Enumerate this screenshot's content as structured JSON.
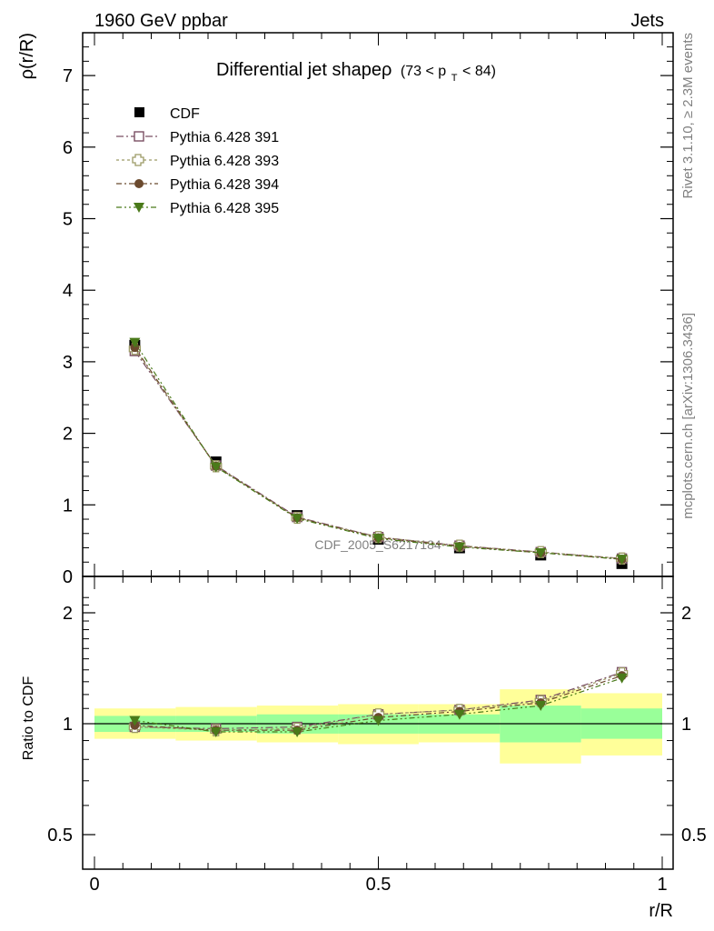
{
  "header": {
    "left": "1960 GeV ppbar",
    "right": "Jets"
  },
  "side_labels": {
    "rivet": "Rivet 3.1.10, ≥ 2.3M events",
    "mcplots": "mcplots.cern.ch [arXiv:1306.3436]"
  },
  "chart_data": [
    {
      "type": "scatter",
      "title": "Differential jet shapeρ",
      "title_cut": "(73 < p",
      "title_cut_sub": "T",
      "title_cut_end": " < 84)",
      "xlabel": "r/R",
      "ylabel": "ρ(r/R)",
      "xlim": [
        0,
        1
      ],
      "ylim": [
        0,
        7.6
      ],
      "y_ticks": [
        "0",
        "1",
        "2",
        "3",
        "4",
        "5",
        "6",
        "7"
      ],
      "watermark": "CDF_2005_S6217184",
      "legend_position": "top-left",
      "x": [
        0.071,
        0.214,
        0.357,
        0.5,
        0.643,
        0.786,
        0.929
      ],
      "series": [
        {
          "name": "CDF",
          "color": "#000000",
          "marker": "square-filled",
          "values": [
            3.23,
            1.6,
            0.85,
            0.52,
            0.4,
            0.3,
            0.18
          ]
        },
        {
          "name": "Pythia 6.428 391",
          "color": "#7a4f63",
          "marker": "square-open",
          "dash": "8,3,2,3",
          "values": [
            3.15,
            1.55,
            0.83,
            0.55,
            0.43,
            0.34,
            0.25
          ]
        },
        {
          "name": "Pythia 6.428 393",
          "color": "#9c9a66",
          "marker": "cross-open",
          "dash": "3,3",
          "values": [
            3.18,
            1.54,
            0.82,
            0.55,
            0.43,
            0.34,
            0.25
          ]
        },
        {
          "name": "Pythia 6.428 394",
          "color": "#6b4a2e",
          "marker": "circle-filled",
          "dash": "6,3,2,3",
          "values": [
            3.2,
            1.54,
            0.82,
            0.54,
            0.42,
            0.33,
            0.24
          ]
        },
        {
          "name": "Pythia 6.428 395",
          "color": "#4a7a1a",
          "marker": "triangle-down-filled",
          "dash": "6,3,2,3,2,3",
          "values": [
            3.27,
            1.53,
            0.81,
            0.53,
            0.41,
            0.33,
            0.24
          ]
        }
      ]
    },
    {
      "type": "scatter",
      "title": "",
      "xlabel": "r/R",
      "ylabel": "Ratio to CDF",
      "xlim": [
        0,
        1
      ],
      "ylim": [
        0.35,
        2.3
      ],
      "x_ticks": [
        "0",
        "0.5",
        "1"
      ],
      "y_ticks": [
        "0.5",
        "1",
        "2"
      ],
      "reference_line": 1,
      "bands": {
        "edges": [
          0,
          0.143,
          0.286,
          0.429,
          0.571,
          0.714,
          0.857,
          1.0
        ],
        "inner_lo": [
          0.95,
          0.95,
          0.94,
          0.94,
          0.94,
          0.89,
          0.91
        ],
        "inner_hi": [
          1.05,
          1.05,
          1.06,
          1.06,
          1.06,
          1.12,
          1.1
        ],
        "outer_lo": [
          0.91,
          0.9,
          0.89,
          0.88,
          0.89,
          0.78,
          0.82
        ],
        "outer_hi": [
          1.1,
          1.11,
          1.12,
          1.13,
          1.13,
          1.24,
          1.21
        ],
        "inner_color": "#99ff99",
        "outer_color": "#ffff99"
      },
      "x": [
        0.071,
        0.214,
        0.357,
        0.5,
        0.643,
        0.786,
        0.929
      ],
      "series": [
        {
          "name": "Pythia 6.428 391",
          "color": "#7a4f63",
          "marker": "square-open",
          "dash": "8,3,2,3",
          "values": [
            0.98,
            0.97,
            0.98,
            1.06,
            1.09,
            1.16,
            1.38
          ]
        },
        {
          "name": "Pythia 6.428 393",
          "color": "#9c9a66",
          "marker": "cross-open",
          "dash": "3,3",
          "values": [
            0.98,
            0.96,
            0.97,
            1.06,
            1.09,
            1.15,
            1.37
          ]
        },
        {
          "name": "Pythia 6.428 394",
          "color": "#6b4a2e",
          "marker": "circle-filled",
          "dash": "6,3,2,3",
          "values": [
            0.99,
            0.96,
            0.96,
            1.04,
            1.08,
            1.14,
            1.35
          ]
        },
        {
          "name": "Pythia 6.428 395",
          "color": "#4a7a1a",
          "marker": "triangle-down-filled",
          "dash": "6,3,2,3,2,3",
          "values": [
            1.02,
            0.95,
            0.95,
            1.02,
            1.06,
            1.12,
            1.33
          ]
        }
      ]
    }
  ]
}
